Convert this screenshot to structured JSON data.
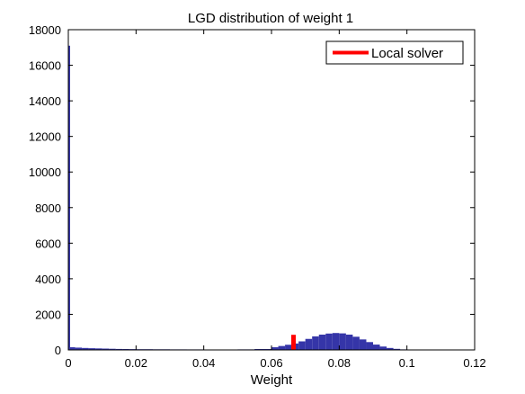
{
  "chart_data": {
    "type": "bar",
    "title": "LGD distribution of weight 1",
    "xlabel": "Weight",
    "ylabel": "",
    "xlim": [
      0,
      0.12
    ],
    "ylim": [
      0,
      18000
    ],
    "xticks": [
      "0",
      "0.02",
      "0.04",
      "0.06",
      "0.08",
      "0.1",
      "0.12"
    ],
    "yticks": [
      "0",
      "2000",
      "4000",
      "6000",
      "8000",
      "10000",
      "12000",
      "14000",
      "16000",
      "18000"
    ],
    "grid": false,
    "legend": {
      "placement": "top-right",
      "entries": [
        {
          "name": "Local solver",
          "color": "#ff0000"
        }
      ]
    },
    "series": [
      {
        "kind": "histogram",
        "color": "#3535a8",
        "spike": {
          "x": 0.0003,
          "count": 17100
        },
        "bins": [
          [
            0.0,
            150
          ],
          [
            0.002,
            130
          ],
          [
            0.004,
            110
          ],
          [
            0.006,
            95
          ],
          [
            0.008,
            85
          ],
          [
            0.01,
            75
          ],
          [
            0.012,
            65
          ],
          [
            0.014,
            55
          ],
          [
            0.016,
            50
          ],
          [
            0.018,
            45
          ],
          [
            0.02,
            40
          ],
          [
            0.025,
            35
          ],
          [
            0.03,
            30
          ],
          [
            0.035,
            28
          ],
          [
            0.04,
            25
          ],
          [
            0.045,
            25
          ],
          [
            0.05,
            30
          ],
          [
            0.055,
            50
          ],
          [
            0.06,
            150
          ],
          [
            0.062,
            220
          ],
          [
            0.064,
            290
          ],
          [
            0.066,
            360
          ],
          [
            0.068,
            480
          ],
          [
            0.07,
            620
          ],
          [
            0.072,
            760
          ],
          [
            0.074,
            860
          ],
          [
            0.076,
            920
          ],
          [
            0.078,
            950
          ],
          [
            0.08,
            930
          ],
          [
            0.082,
            860
          ],
          [
            0.084,
            740
          ],
          [
            0.086,
            590
          ],
          [
            0.088,
            440
          ],
          [
            0.09,
            300
          ],
          [
            0.092,
            190
          ],
          [
            0.094,
            110
          ],
          [
            0.096,
            60
          ],
          [
            0.098,
            30
          ],
          [
            0.1,
            15
          ],
          [
            0.102,
            8
          ],
          [
            0.104,
            4
          ],
          [
            0.106,
            2
          ],
          [
            0.108,
            1
          ],
          [
            0.11,
            0
          ]
        ]
      },
      {
        "name": "Local solver",
        "kind": "marker-bar",
        "color": "#ff0000",
        "x": 0.0665,
        "value": 850
      }
    ]
  }
}
